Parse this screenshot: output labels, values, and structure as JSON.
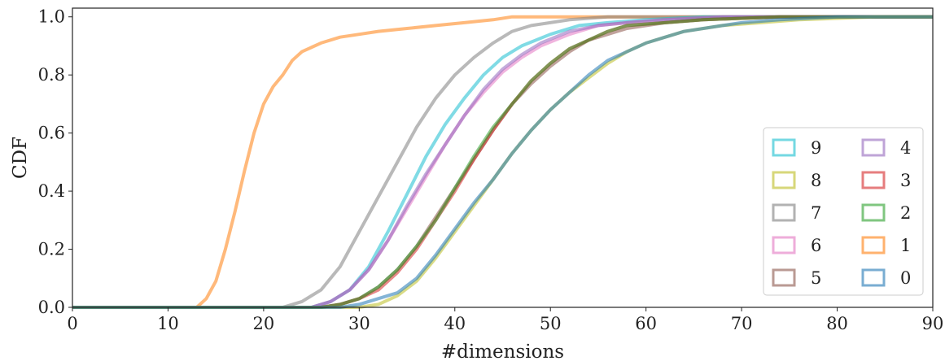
{
  "chart_data": {
    "type": "line",
    "xlabel": "#dimensions",
    "ylabel": "CDF",
    "xlim": [
      0,
      90
    ],
    "ylim": [
      0,
      1.03
    ],
    "x_ticks": [
      "0",
      "10",
      "20",
      "30",
      "40",
      "50",
      "60",
      "70",
      "80",
      "90"
    ],
    "y_ticks": [
      "0.0",
      "0.2",
      "0.4",
      "0.6",
      "0.8",
      "1.0"
    ],
    "grid": false,
    "legend_position": "lower-right",
    "legend_columns": 2,
    "series": [
      {
        "name": "0",
        "color": "#1f77b4",
        "points": [
          [
            0,
            0
          ],
          [
            28,
            0
          ],
          [
            30,
            0.01
          ],
          [
            34,
            0.05
          ],
          [
            36,
            0.1
          ],
          [
            38,
            0.18
          ],
          [
            40,
            0.27
          ],
          [
            42,
            0.36
          ],
          [
            44,
            0.44
          ],
          [
            46,
            0.53
          ],
          [
            48,
            0.61
          ],
          [
            50,
            0.68
          ],
          [
            52,
            0.74
          ],
          [
            54,
            0.8
          ],
          [
            56,
            0.85
          ],
          [
            58,
            0.88
          ],
          [
            60,
            0.91
          ],
          [
            62,
            0.93
          ],
          [
            64,
            0.95
          ],
          [
            66,
            0.96
          ],
          [
            68,
            0.97
          ],
          [
            70,
            0.98
          ],
          [
            74,
            0.99
          ],
          [
            80,
            1.0
          ],
          [
            90,
            1.0
          ]
        ]
      },
      {
        "name": "1",
        "color": "#ff7f0e",
        "points": [
          [
            0,
            0
          ],
          [
            13,
            0
          ],
          [
            14,
            0.03
          ],
          [
            15,
            0.09
          ],
          [
            16,
            0.2
          ],
          [
            17,
            0.33
          ],
          [
            18,
            0.47
          ],
          [
            19,
            0.6
          ],
          [
            20,
            0.7
          ],
          [
            21,
            0.76
          ],
          [
            22,
            0.8
          ],
          [
            23,
            0.85
          ],
          [
            24,
            0.88
          ],
          [
            26,
            0.91
          ],
          [
            28,
            0.93
          ],
          [
            30,
            0.94
          ],
          [
            32,
            0.95
          ],
          [
            35,
            0.96
          ],
          [
            38,
            0.97
          ],
          [
            41,
            0.98
          ],
          [
            44,
            0.99
          ],
          [
            46,
            1.0
          ],
          [
            90,
            1.0
          ]
        ]
      },
      {
        "name": "2",
        "color": "#2ca02c",
        "points": [
          [
            0,
            0
          ],
          [
            26,
            0
          ],
          [
            28,
            0.01
          ],
          [
            30,
            0.03
          ],
          [
            32,
            0.07
          ],
          [
            34,
            0.13
          ],
          [
            36,
            0.21
          ],
          [
            38,
            0.3
          ],
          [
            40,
            0.41
          ],
          [
            42,
            0.52
          ],
          [
            44,
            0.62
          ],
          [
            46,
            0.7
          ],
          [
            48,
            0.78
          ],
          [
            50,
            0.84
          ],
          [
            52,
            0.89
          ],
          [
            54,
            0.92
          ],
          [
            56,
            0.95
          ],
          [
            58,
            0.97
          ],
          [
            62,
            0.98
          ],
          [
            66,
            0.99
          ],
          [
            74,
            1.0
          ],
          [
            90,
            1.0
          ]
        ]
      },
      {
        "name": "3",
        "color": "#d62728",
        "points": [
          [
            0,
            0
          ],
          [
            26,
            0
          ],
          [
            28,
            0.01
          ],
          [
            30,
            0.03
          ],
          [
            32,
            0.06
          ],
          [
            34,
            0.12
          ],
          [
            36,
            0.2
          ],
          [
            38,
            0.3
          ],
          [
            40,
            0.4
          ],
          [
            42,
            0.51
          ],
          [
            44,
            0.61
          ],
          [
            46,
            0.7
          ],
          [
            48,
            0.78
          ],
          [
            50,
            0.84
          ],
          [
            52,
            0.89
          ],
          [
            54,
            0.92
          ],
          [
            56,
            0.95
          ],
          [
            58,
            0.97
          ],
          [
            62,
            0.98
          ],
          [
            66,
            0.99
          ],
          [
            74,
            1.0
          ],
          [
            90,
            1.0
          ]
        ]
      },
      {
        "name": "4",
        "color": "#9467bd",
        "points": [
          [
            0,
            0
          ],
          [
            25,
            0
          ],
          [
            27,
            0.02
          ],
          [
            29,
            0.06
          ],
          [
            31,
            0.13
          ],
          [
            33,
            0.23
          ],
          [
            35,
            0.35
          ],
          [
            37,
            0.46
          ],
          [
            39,
            0.56
          ],
          [
            41,
            0.66
          ],
          [
            43,
            0.75
          ],
          [
            45,
            0.82
          ],
          [
            47,
            0.87
          ],
          [
            49,
            0.91
          ],
          [
            52,
            0.95
          ],
          [
            55,
            0.97
          ],
          [
            58,
            0.98
          ],
          [
            62,
            0.99
          ],
          [
            68,
            1.0
          ],
          [
            90,
            1.0
          ]
        ]
      },
      {
        "name": "5",
        "color": "#8c564b",
        "points": [
          [
            0,
            0
          ],
          [
            26,
            0
          ],
          [
            28,
            0.01
          ],
          [
            30,
            0.03
          ],
          [
            32,
            0.07
          ],
          [
            34,
            0.13
          ],
          [
            36,
            0.21
          ],
          [
            38,
            0.31
          ],
          [
            40,
            0.41
          ],
          [
            42,
            0.51
          ],
          [
            44,
            0.61
          ],
          [
            46,
            0.7
          ],
          [
            48,
            0.77
          ],
          [
            50,
            0.83
          ],
          [
            52,
            0.88
          ],
          [
            54,
            0.92
          ],
          [
            56,
            0.94
          ],
          [
            58,
            0.96
          ],
          [
            62,
            0.98
          ],
          [
            66,
            0.99
          ],
          [
            74,
            1.0
          ],
          [
            90,
            1.0
          ]
        ]
      },
      {
        "name": "6",
        "color": "#e377c2",
        "points": [
          [
            0,
            0
          ],
          [
            25,
            0
          ],
          [
            27,
            0.02
          ],
          [
            29,
            0.06
          ],
          [
            31,
            0.13
          ],
          [
            33,
            0.23
          ],
          [
            35,
            0.34
          ],
          [
            37,
            0.45
          ],
          [
            39,
            0.56
          ],
          [
            41,
            0.66
          ],
          [
            43,
            0.74
          ],
          [
            45,
            0.81
          ],
          [
            47,
            0.86
          ],
          [
            49,
            0.9
          ],
          [
            52,
            0.94
          ],
          [
            55,
            0.97
          ],
          [
            58,
            0.98
          ],
          [
            62,
            0.99
          ],
          [
            68,
            1.0
          ],
          [
            90,
            1.0
          ]
        ]
      },
      {
        "name": "7",
        "color": "#7f7f7f",
        "points": [
          [
            0,
            0
          ],
          [
            22,
            0
          ],
          [
            24,
            0.02
          ],
          [
            26,
            0.06
          ],
          [
            28,
            0.14
          ],
          [
            30,
            0.26
          ],
          [
            32,
            0.38
          ],
          [
            34,
            0.5
          ],
          [
            36,
            0.62
          ],
          [
            38,
            0.72
          ],
          [
            40,
            0.8
          ],
          [
            42,
            0.86
          ],
          [
            44,
            0.91
          ],
          [
            46,
            0.95
          ],
          [
            48,
            0.97
          ],
          [
            52,
            0.99
          ],
          [
            56,
            1.0
          ],
          [
            90,
            1.0
          ]
        ]
      },
      {
        "name": "8",
        "color": "#bcbd22",
        "points": [
          [
            0,
            0
          ],
          [
            30,
            0
          ],
          [
            32,
            0.01
          ],
          [
            34,
            0.04
          ],
          [
            36,
            0.09
          ],
          [
            38,
            0.17
          ],
          [
            40,
            0.26
          ],
          [
            42,
            0.35
          ],
          [
            44,
            0.44
          ],
          [
            46,
            0.53
          ],
          [
            48,
            0.61
          ],
          [
            50,
            0.68
          ],
          [
            52,
            0.74
          ],
          [
            54,
            0.79
          ],
          [
            56,
            0.84
          ],
          [
            58,
            0.88
          ],
          [
            60,
            0.91
          ],
          [
            62,
            0.93
          ],
          [
            64,
            0.95
          ],
          [
            66,
            0.96
          ],
          [
            68,
            0.97
          ],
          [
            72,
            0.98
          ],
          [
            76,
            0.99
          ],
          [
            84,
            1.0
          ],
          [
            90,
            1.0
          ]
        ]
      },
      {
        "name": "9",
        "color": "#17becf",
        "points": [
          [
            0,
            0
          ],
          [
            25,
            0
          ],
          [
            27,
            0.02
          ],
          [
            29,
            0.06
          ],
          [
            31,
            0.14
          ],
          [
            33,
            0.26
          ],
          [
            35,
            0.39
          ],
          [
            37,
            0.52
          ],
          [
            39,
            0.63
          ],
          [
            41,
            0.72
          ],
          [
            43,
            0.8
          ],
          [
            45,
            0.86
          ],
          [
            47,
            0.9
          ],
          [
            50,
            0.94
          ],
          [
            53,
            0.97
          ],
          [
            56,
            0.98
          ],
          [
            60,
            0.99
          ],
          [
            66,
            1.0
          ],
          [
            90,
            1.0
          ]
        ]
      }
    ],
    "legend_order": [
      "9",
      "4",
      "8",
      "3",
      "7",
      "2",
      "6",
      "1",
      "5",
      "0"
    ]
  }
}
